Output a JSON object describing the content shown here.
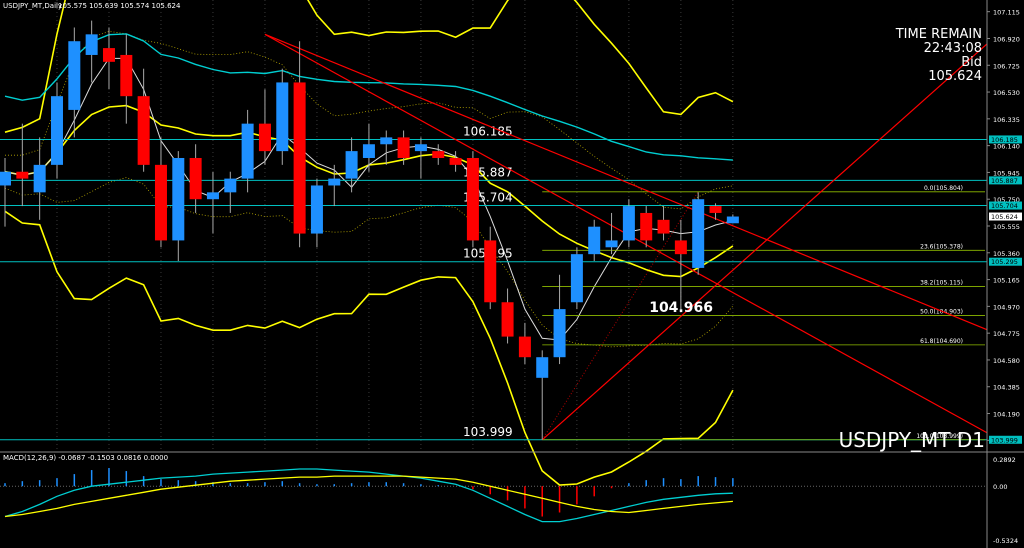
{
  "header": {
    "symbol_info": "USDJPY_MT,Daily",
    "ohlc": "105.575 105.639 105.574 105.624"
  },
  "timer": {
    "label": "TIME REMAIN",
    "time": "22:43:08",
    "bid_label": "Bid",
    "bid": "105.624"
  },
  "watermark": "USDJPY_MT D1",
  "macd": {
    "label": "MACD(12,26,9) -0.0687 -0.1503 0.0816 0.0000",
    "ticks": [
      "0.2892",
      "0.00",
      "-0.5324"
    ]
  },
  "price_axis": {
    "ticks": [
      "107.115",
      "106.920",
      "106.725",
      "106.530",
      "106.335",
      "106.140",
      "105.945",
      "105.750",
      "105.555",
      "105.360",
      "105.165",
      "104.970",
      "104.775",
      "104.580",
      "104.385",
      "104.190",
      "103.995"
    ]
  },
  "levels": [
    {
      "label": "106.185",
      "value": 106.185
    },
    {
      "label": "105.887",
      "value": 105.887
    },
    {
      "label": "105.704",
      "value": 105.704
    },
    {
      "label": "105.295",
      "value": 105.295
    },
    {
      "label": "103.999",
      "value": 103.999
    }
  ],
  "axis_tags": [
    {
      "label": "106.185",
      "value": 106.185
    },
    {
      "label": "105.887",
      "value": 105.887
    },
    {
      "label": "105.704",
      "value": 105.704
    },
    {
      "label": "105.624",
      "value": 105.624,
      "highlight": true
    },
    {
      "label": "105.295",
      "value": 105.295
    },
    {
      "label": "103.999",
      "value": 103.999
    }
  ],
  "fibo": [
    {
      "label": "0.0(105.804)",
      "value": 105.804
    },
    {
      "label": "23.6(105.378)",
      "value": 105.378
    },
    {
      "label": "38.2(105.115)",
      "value": 105.115
    },
    {
      "label": "50.0(104.903)",
      "value": 104.903
    },
    {
      "label": "61.8(104.690)",
      "value": 104.69
    },
    {
      "label": "100.0(103.999)",
      "value": 103.999
    }
  ],
  "annotation": {
    "label": "104.966",
    "value": 104.966
  },
  "colors": {
    "up": "#1e90ff",
    "down": "#ff0000",
    "level": "#00c0c0",
    "fibo": "#8fbc00",
    "bollinger": "#ffff00",
    "trend": "#ff0000",
    "ma": "#00ced1",
    "macd_main": "#00ced1",
    "macd_signal": "#ffff00"
  },
  "chart_data": {
    "type": "candlestick",
    "ylim": [
      103.91,
      107.2
    ],
    "candles": [
      {
        "o": 105.85,
        "h": 106.05,
        "l": 105.55,
        "c": 105.95
      },
      {
        "o": 105.95,
        "h": 106.3,
        "l": 105.7,
        "c": 105.9
      },
      {
        "o": 105.8,
        "h": 106.2,
        "l": 105.6,
        "c": 106.0
      },
      {
        "o": 106.0,
        "h": 106.6,
        "l": 105.9,
        "c": 106.5
      },
      {
        "o": 106.4,
        "h": 107.0,
        "l": 106.2,
        "c": 106.9
      },
      {
        "o": 106.8,
        "h": 107.05,
        "l": 106.6,
        "c": 106.95
      },
      {
        "o": 106.85,
        "h": 107.0,
        "l": 106.55,
        "c": 106.75
      },
      {
        "o": 106.8,
        "h": 106.95,
        "l": 106.3,
        "c": 106.5
      },
      {
        "o": 106.5,
        "h": 106.7,
        "l": 105.95,
        "c": 106.0
      },
      {
        "o": 106.0,
        "h": 106.2,
        "l": 105.4,
        "c": 105.45
      },
      {
        "o": 105.45,
        "h": 106.1,
        "l": 105.3,
        "c": 106.05
      },
      {
        "o": 106.05,
        "h": 106.15,
        "l": 105.65,
        "c": 105.75
      },
      {
        "o": 105.75,
        "h": 105.95,
        "l": 105.5,
        "c": 105.8
      },
      {
        "o": 105.8,
        "h": 105.95,
        "l": 105.65,
        "c": 105.9
      },
      {
        "o": 105.9,
        "h": 106.4,
        "l": 105.8,
        "c": 106.3
      },
      {
        "o": 106.3,
        "h": 106.55,
        "l": 106.0,
        "c": 106.1
      },
      {
        "o": 106.1,
        "h": 106.7,
        "l": 106.0,
        "c": 106.6
      },
      {
        "o": 106.6,
        "h": 106.9,
        "l": 105.4,
        "c": 105.5
      },
      {
        "o": 105.5,
        "h": 105.9,
        "l": 105.4,
        "c": 105.85
      },
      {
        "o": 105.85,
        "h": 106.0,
        "l": 105.7,
        "c": 105.9
      },
      {
        "o": 105.9,
        "h": 106.2,
        "l": 105.8,
        "c": 106.1
      },
      {
        "o": 106.05,
        "h": 106.3,
        "l": 105.95,
        "c": 106.15
      },
      {
        "o": 106.15,
        "h": 106.25,
        "l": 106.0,
        "c": 106.2
      },
      {
        "o": 106.2,
        "h": 106.25,
        "l": 106.0,
        "c": 106.05
      },
      {
        "o": 106.1,
        "h": 106.2,
        "l": 105.9,
        "c": 106.15
      },
      {
        "o": 106.1,
        "h": 106.15,
        "l": 106.0,
        "c": 106.05
      },
      {
        "o": 106.05,
        "h": 106.1,
        "l": 105.95,
        "c": 106.0
      },
      {
        "o": 106.05,
        "h": 106.1,
        "l": 105.4,
        "c": 105.45
      },
      {
        "o": 105.45,
        "h": 105.55,
        "l": 104.95,
        "c": 105.0
      },
      {
        "o": 105.0,
        "h": 105.1,
        "l": 104.7,
        "c": 104.75
      },
      {
        "o": 104.75,
        "h": 104.85,
        "l": 104.55,
        "c": 104.6
      },
      {
        "o": 104.45,
        "h": 104.65,
        "l": 103.999,
        "c": 104.6
      },
      {
        "o": 104.6,
        "h": 105.2,
        "l": 104.55,
        "c": 104.95
      },
      {
        "o": 105.0,
        "h": 105.4,
        "l": 104.95,
        "c": 105.35
      },
      {
        "o": 105.35,
        "h": 105.6,
        "l": 105.3,
        "c": 105.55
      },
      {
        "o": 105.4,
        "h": 105.65,
        "l": 105.35,
        "c": 105.45
      },
      {
        "o": 105.45,
        "h": 105.75,
        "l": 105.4,
        "c": 105.7
      },
      {
        "o": 105.65,
        "h": 105.7,
        "l": 105.4,
        "c": 105.45
      },
      {
        "o": 105.6,
        "h": 105.7,
        "l": 105.45,
        "c": 105.5
      },
      {
        "o": 105.45,
        "h": 105.6,
        "l": 104.95,
        "c": 105.35
      },
      {
        "o": 105.25,
        "h": 105.8,
        "l": 105.2,
        "c": 105.75
      },
      {
        "o": 105.7,
        "h": 105.72,
        "l": 105.6,
        "c": 105.65
      },
      {
        "o": 105.575,
        "h": 105.639,
        "l": 105.574,
        "c": 105.624
      }
    ],
    "macd_hist": [
      0.03,
      0.05,
      0.06,
      0.08,
      0.12,
      0.16,
      0.18,
      0.15,
      0.1,
      0.07,
      0.06,
      0.05,
      0.04,
      0.03,
      0.03,
      0.04,
      0.05,
      0.03,
      0.02,
      0.02,
      0.03,
      0.04,
      0.04,
      0.03,
      0.02,
      0.01,
      0.0,
      -0.03,
      -0.08,
      -0.14,
      -0.22,
      -0.3,
      -0.26,
      -0.18,
      -0.1,
      -0.02,
      0.03,
      0.06,
      0.08,
      0.07,
      0.1,
      0.09,
      0.08
    ],
    "macd_main": [
      -0.3,
      -0.25,
      -0.18,
      -0.1,
      -0.04,
      0.0,
      0.02,
      0.04,
      0.06,
      0.08,
      0.09,
      0.1,
      0.12,
      0.13,
      0.14,
      0.15,
      0.16,
      0.17,
      0.17,
      0.16,
      0.15,
      0.14,
      0.12,
      0.1,
      0.08,
      0.05,
      0.02,
      -0.04,
      -0.12,
      -0.2,
      -0.28,
      -0.35,
      -0.35,
      -0.32,
      -0.28,
      -0.24,
      -0.2,
      -0.16,
      -0.13,
      -0.11,
      -0.09,
      -0.075,
      -0.0687
    ],
    "macd_signal": [
      -0.3,
      -0.28,
      -0.25,
      -0.22,
      -0.18,
      -0.15,
      -0.12,
      -0.09,
      -0.06,
      -0.03,
      -0.01,
      0.01,
      0.03,
      0.05,
      0.06,
      0.07,
      0.08,
      0.09,
      0.09,
      0.1,
      0.1,
      0.1,
      0.1,
      0.1,
      0.09,
      0.08,
      0.07,
      0.04,
      0.0,
      -0.04,
      -0.08,
      -0.12,
      -0.16,
      -0.2,
      -0.23,
      -0.25,
      -0.26,
      -0.24,
      -0.22,
      -0.2,
      -0.18,
      -0.165,
      -0.1503
    ],
    "macd_ylim": [
      -0.5324,
      0.2892
    ]
  }
}
